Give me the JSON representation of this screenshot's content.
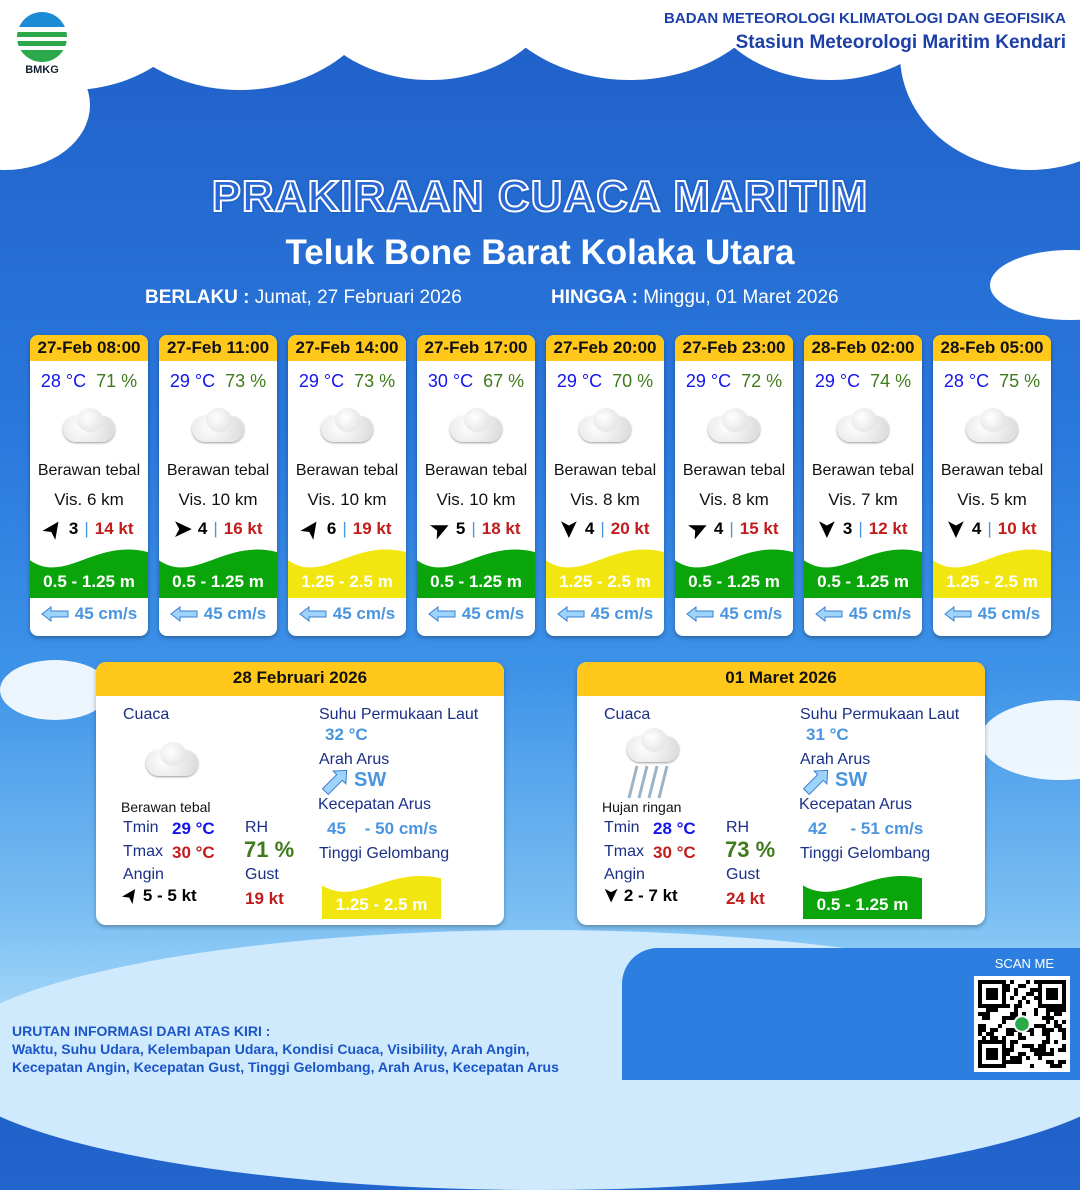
{
  "header": {
    "logo_text": "BMKG",
    "org": "BADAN METEOROLOGI KLIMATOLOGI DAN GEOFISIKA",
    "station": "Stasiun Meteorologi Maritim Kendari"
  },
  "title": "PRAKIRAAN CUACA MARITIM",
  "area": "Teluk Bone Barat Kolaka Utara",
  "validity": {
    "from_label": "BERLAKU :",
    "from": "Jumat, 27 Februari 2026",
    "to_label": "HINGGA :",
    "to": "Minggu, 01 Maret 2026"
  },
  "colors": {
    "header_yellow": "#ffc81a",
    "wave_green": "#0aa50a",
    "wave_yellow": "#f2e611",
    "temp": "#1414ee",
    "rh": "#3f7a1c",
    "gust": "#c21c1c",
    "current": "#4a95e0"
  },
  "cards": [
    {
      "time": "27-Feb 08:00",
      "temp": "28 °C",
      "rh": "71 %",
      "icon": "cloud-icon",
      "cond": "Berawan tebal",
      "vis": "Vis. 6 km",
      "wind_dir": "NE",
      "wind": "3",
      "gust": "14 kt",
      "wave": "0.5 - 1.25 m",
      "wave_color": "green",
      "current": "45 cm/s"
    },
    {
      "time": "27-Feb 11:00",
      "temp": "29 °C",
      "rh": "73 %",
      "icon": "cloud-icon",
      "cond": "Berawan tebal",
      "vis": "Vis. 10 km",
      "wind_dir": "E",
      "wind": "4",
      "gust": "16 kt",
      "wave": "0.5 - 1.25 m",
      "wave_color": "green",
      "current": "45 cm/s"
    },
    {
      "time": "27-Feb 14:00",
      "temp": "29 °C",
      "rh": "73 %",
      "icon": "cloud-icon",
      "cond": "Berawan tebal",
      "vis": "Vis. 10 km",
      "wind_dir": "NE",
      "wind": "6",
      "gust": "19 kt",
      "wave": "1.25 - 2.5 m",
      "wave_color": "yellow",
      "current": "45 cm/s"
    },
    {
      "time": "27-Feb 17:00",
      "temp": "30 °C",
      "rh": "67 %",
      "icon": "cloud-icon",
      "cond": "Berawan tebal",
      "vis": "Vis.  10 km",
      "wind_dir": "ENE",
      "wind": "5",
      "gust": "18 kt",
      "wave": "0.5 - 1.25 m",
      "wave_color": "green",
      "current": "45 cm/s"
    },
    {
      "time": "27-Feb 20:00",
      "temp": "29 °C",
      "rh": "70 %",
      "icon": "cloud-icon",
      "cond": "Berawan tebal",
      "vis": "Vis. 8 km",
      "wind_dir": "S",
      "wind": "4",
      "gust": "20 kt",
      "wave": "1.25 - 2.5 m",
      "wave_color": "yellow",
      "current": "45 cm/s"
    },
    {
      "time": "27-Feb 23:00",
      "temp": "29 °C",
      "rh": "72 %",
      "icon": "cloud-icon",
      "cond": "Berawan tebal",
      "vis": "Vis. 8 km",
      "wind_dir": "ENE",
      "wind": "4",
      "gust": "15 kt",
      "wave": "0.5 - 1.25 m",
      "wave_color": "green",
      "current": "45 cm/s"
    },
    {
      "time": "28-Feb 02:00",
      "temp": "29 °C",
      "rh": "74 %",
      "icon": "cloud-icon",
      "cond": "Berawan tebal",
      "vis": "Vis.  7 km",
      "wind_dir": "S",
      "wind": "3",
      "gust": "12 kt",
      "wave": "0.5 - 1.25 m",
      "wave_color": "green",
      "current": "45 cm/s"
    },
    {
      "time": "28-Feb 05:00",
      "temp": "28 °C",
      "rh": "75 %",
      "icon": "cloud-icon",
      "cond": "Berawan tebal",
      "vis": "Vis.  5 km",
      "wind_dir": "S",
      "wind": "4",
      "gust": "10 kt",
      "wave": "1.25 - 2.5 m",
      "wave_color": "yellow",
      "current": "45 cm/s"
    }
  ],
  "labels": {
    "weather": "Cuaca",
    "sst": "Suhu Permukaan Laut",
    "current_dir": "Arah Arus",
    "current_speed": "Kecepatan Arus",
    "wave": "Tinggi Gelombang",
    "tmin": "Tmin",
    "tmax": "Tmax",
    "rh": "RH",
    "wind": "Angin",
    "gust": "Gust"
  },
  "summaries": [
    {
      "date": "28 Februari 2026",
      "icon": "cloud-icon",
      "cond": "Berawan tebal",
      "tmin": "29 °C",
      "tmax": "30 °C",
      "rh": "71 %",
      "wind_dir": "NE",
      "wind": "5  - 5 kt",
      "gust": "19 kt",
      "sst": "32 °C",
      "current_dir": "SW",
      "current_speed": "45    - 50 cm/s",
      "wave": "1.25 - 2.5 m",
      "wave_color": "yellow"
    },
    {
      "date": "01 Maret 2026",
      "icon": "rain-cloud-icon",
      "cond": "Hujan ringan",
      "tmin": "28 °C",
      "tmax": "30 °C",
      "rh": "73 %",
      "wind_dir": "S",
      "wind": "2  - 7 kt",
      "gust": "24 kt",
      "sst": "31 °C",
      "current_dir": "SW",
      "current_speed": "42     - 51 cm/s",
      "wave": "0.5 - 1.25 m",
      "wave_color": "green"
    }
  ],
  "scan": "SCAN ME",
  "footer": {
    "heading": "URUTAN INFORMASI DARI ATAS KIRI :",
    "line1": "Waktu, Suhu Udara, Kelembapan Udara, Kondisi Cuaca, Visibility, Arah Angin,",
    "line2": "Kecepatan Angin, Kecepatan Gust, Tinggi Gelombang, Arah Arus, Kecepatan Arus"
  }
}
